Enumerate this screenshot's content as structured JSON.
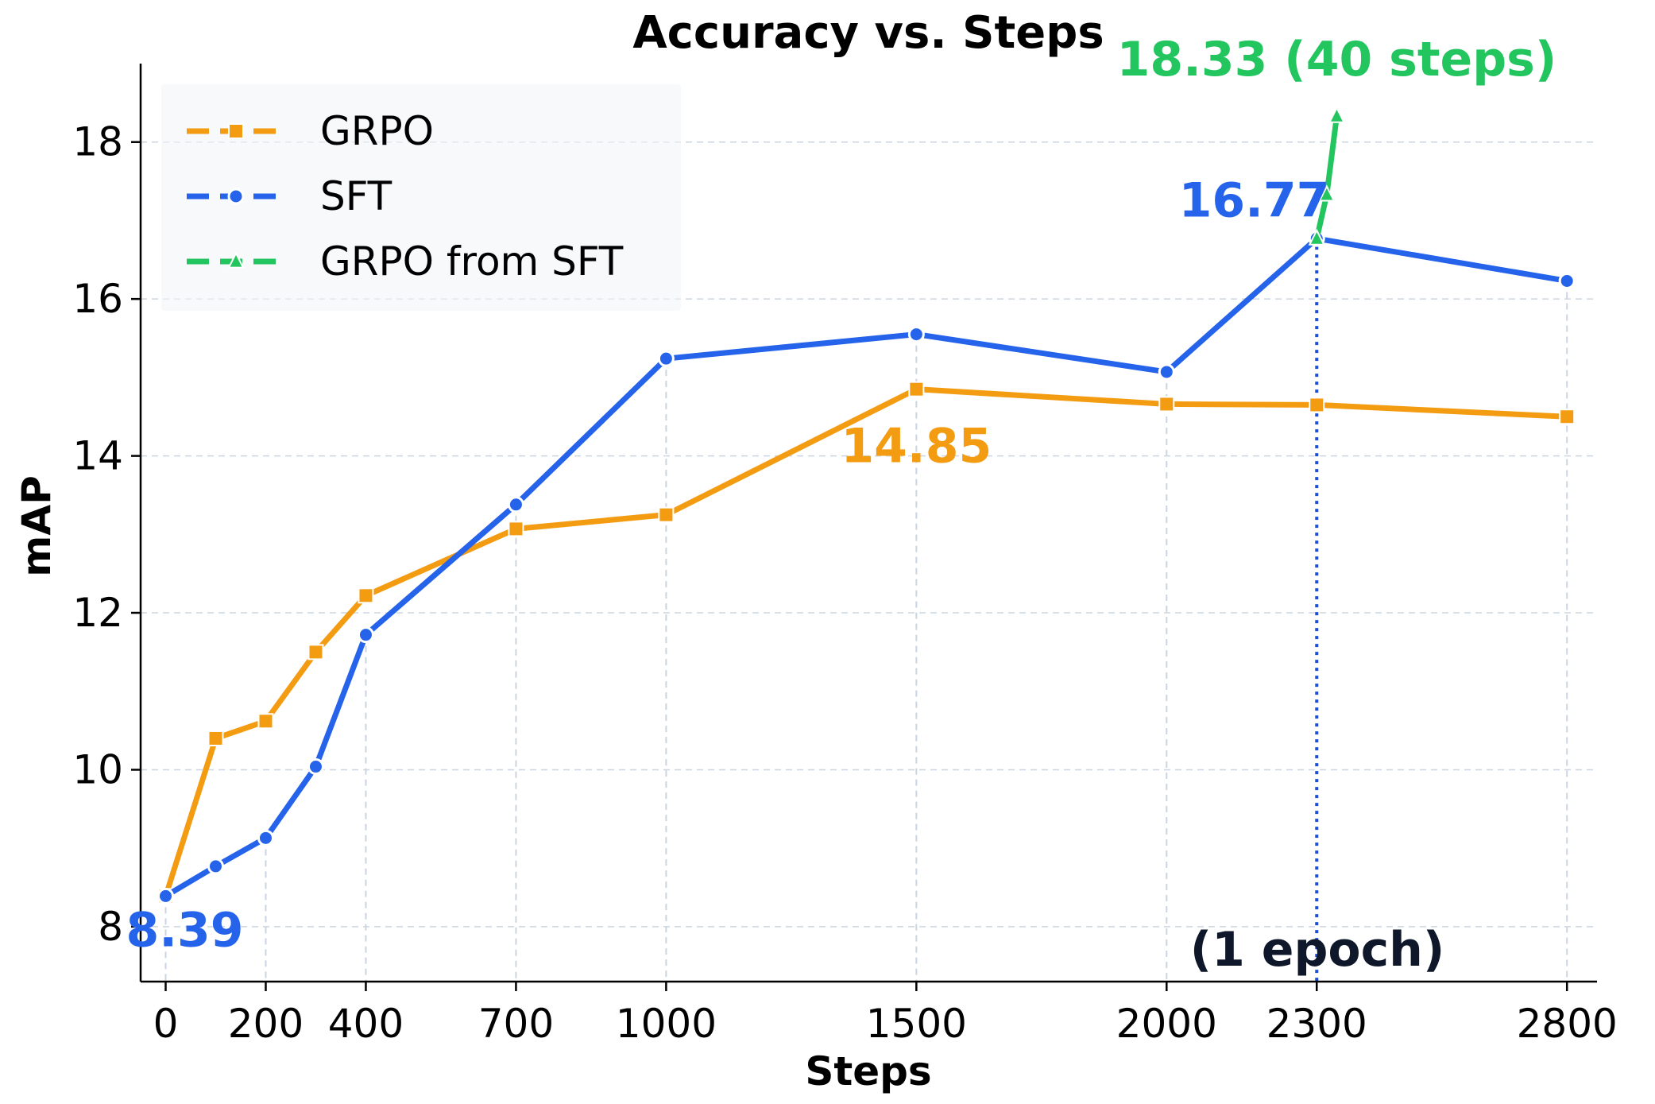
{
  "chart_data": {
    "type": "line",
    "title": "Accuracy vs. Steps",
    "xlabel": "Steps",
    "ylabel": "mAP",
    "xlim": [
      -50,
      2860
    ],
    "ylim": [
      7.3,
      19.0
    ],
    "x_ticks": [
      0,
      200,
      400,
      700,
      1000,
      1500,
      2000,
      2300,
      2800
    ],
    "y_ticks": [
      8,
      10,
      12,
      14,
      16,
      18
    ],
    "grid": "horizontal dashed",
    "legend_position": "top-left",
    "series": [
      {
        "name": "GRPO",
        "color": "#f39c12",
        "marker": "square",
        "x": [
          0,
          100,
          200,
          300,
          400,
          700,
          1000,
          1500,
          2000,
          2300,
          2800
        ],
        "y": [
          8.39,
          10.4,
          10.62,
          11.5,
          12.22,
          13.07,
          13.25,
          14.85,
          14.66,
          14.65,
          14.5
        ]
      },
      {
        "name": "SFT",
        "color": "#2563eb",
        "marker": "circle",
        "x": [
          0,
          100,
          200,
          300,
          400,
          700,
          1000,
          1500,
          2000,
          2300,
          2800
        ],
        "y": [
          8.39,
          8.77,
          9.13,
          10.04,
          11.72,
          13.38,
          15.24,
          15.55,
          15.07,
          16.77,
          16.23
        ]
      },
      {
        "name": "GRPO from SFT",
        "color": "#22c55e",
        "marker": "triangle",
        "x": [
          2300,
          2320,
          2340
        ],
        "y": [
          16.77,
          17.33,
          18.33
        ]
      }
    ],
    "epoch_marker": {
      "x": 2300,
      "label": "(1 epoch)",
      "color": "#1d4ed8"
    },
    "annotations": [
      {
        "text": "8.39",
        "x": 0,
        "y": 7.75,
        "color": "#2563eb",
        "anchor": "start"
      },
      {
        "text": "14.85",
        "x": 1500,
        "y": 13.92,
        "color": "#f39c12",
        "anchor": "middle"
      },
      {
        "text": "16.77",
        "x": 2175,
        "y": 17.05,
        "color": "#2563eb",
        "anchor": "middle"
      },
      {
        "text": "18.33 (40 steps)",
        "x": 2340,
        "y": 18.85,
        "color": "#22c55e",
        "anchor": "middle"
      }
    ]
  }
}
